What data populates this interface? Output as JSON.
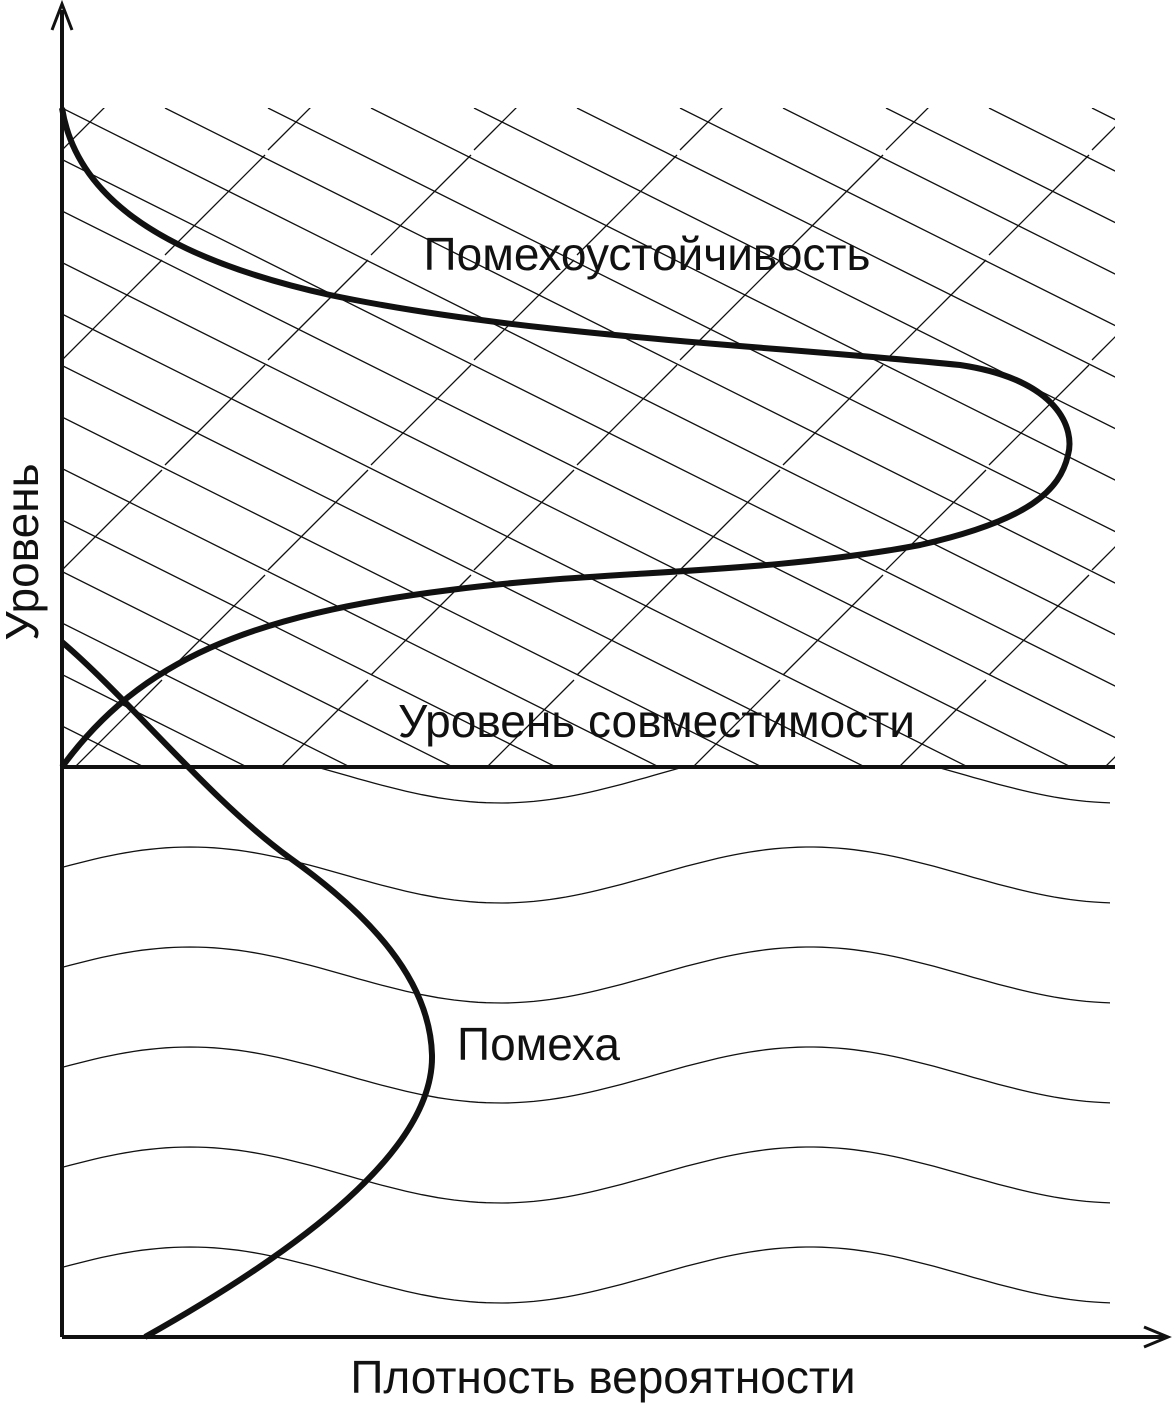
{
  "axes": {
    "y_label": "Уровень",
    "x_label": "Плотность вероятности"
  },
  "regions": {
    "immunity": "Помехоустойчивость",
    "compatibility_level": "Уровень совместимости",
    "interference": "Помеха"
  }
}
